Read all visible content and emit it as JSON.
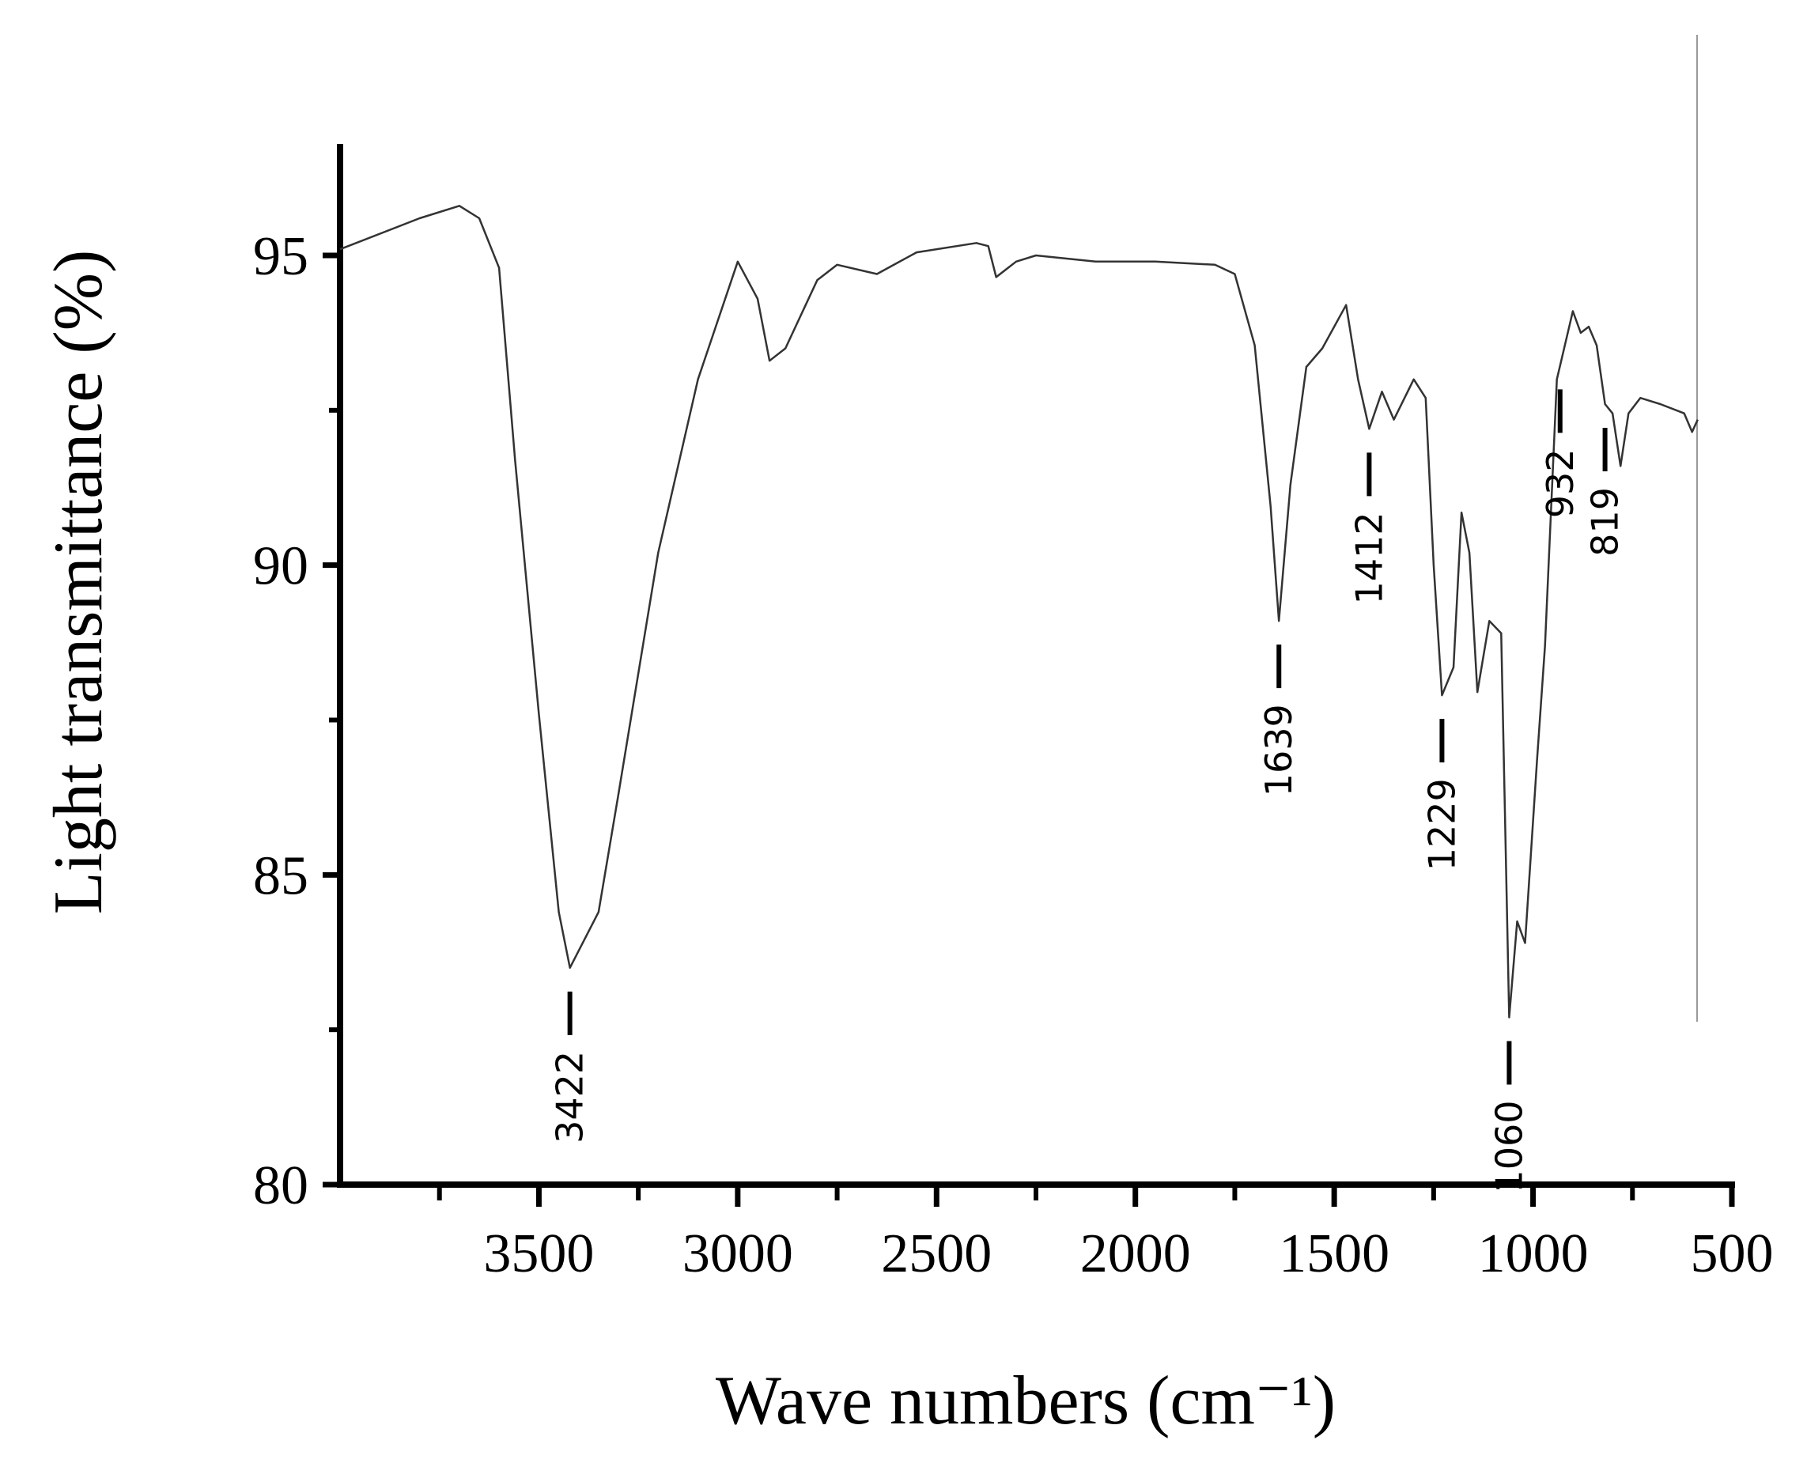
{
  "chart_data": {
    "type": "line",
    "xlabel": "Wave numbers (cm⁻¹)",
    "ylabel": "Light transmittance (%)",
    "x": [
      4000,
      3800,
      3700,
      3650,
      3600,
      3560,
      3500,
      3450,
      3422,
      3350,
      3300,
      3200,
      3100,
      3000,
      2950,
      2920,
      2880,
      2800,
      2750,
      2650,
      2550,
      2400,
      2370,
      2350,
      2300,
      2250,
      2100,
      1950,
      1800,
      1750,
      1700,
      1660,
      1639,
      1610,
      1570,
      1530,
      1470,
      1440,
      1412,
      1380,
      1350,
      1300,
      1270,
      1250,
      1229,
      1200,
      1180,
      1160,
      1140,
      1110,
      1080,
      1060,
      1040,
      1020,
      990,
      970,
      940,
      920,
      900,
      880,
      860,
      840,
      819,
      800,
      780,
      760,
      730,
      680,
      620,
      600,
      586
    ],
    "values": [
      95.1,
      95.6,
      95.8,
      95.6,
      94.8,
      91.7,
      87.6,
      84.4,
      83.5,
      84.4,
      86.3,
      90.2,
      93.0,
      94.9,
      94.3,
      93.3,
      93.5,
      94.6,
      94.85,
      94.7,
      95.05,
      95.2,
      95.15,
      94.65,
      94.9,
      95.0,
      94.9,
      94.9,
      94.85,
      94.7,
      93.55,
      90.95,
      89.1,
      91.3,
      93.2,
      93.5,
      94.2,
      93.0,
      92.2,
      92.8,
      92.35,
      93.0,
      92.7,
      90.0,
      87.9,
      88.35,
      90.85,
      90.2,
      87.95,
      89.1,
      88.9,
      82.7,
      84.25,
      83.9,
      86.85,
      88.7,
      93.0,
      93.55,
      94.1,
      93.75,
      93.85,
      93.55,
      92.6,
      92.45,
      91.6,
      92.45,
      92.7,
      92.6,
      92.45,
      92.15,
      92.35
    ],
    "color": "#333333",
    "xlim": [
      4000,
      500
    ],
    "ylim": [
      80,
      96.8
    ],
    "xticks": [
      3500,
      3000,
      2500,
      2000,
      1500,
      1000,
      500
    ],
    "x_minor_ticks": [
      3750,
      3250,
      2750,
      2250,
      1750,
      1250,
      750
    ],
    "yticks": [
      80,
      85,
      90,
      95
    ],
    "y_minor_ticks": [
      82.5,
      87.5,
      92.5
    ],
    "annotations": [
      {
        "x": 3422
      },
      {
        "x": 1639
      },
      {
        "x": 1412
      },
      {
        "x": 1229
      },
      {
        "x": 1060
      },
      {
        "x": 932
      },
      {
        "x": 819
      }
    ]
  }
}
